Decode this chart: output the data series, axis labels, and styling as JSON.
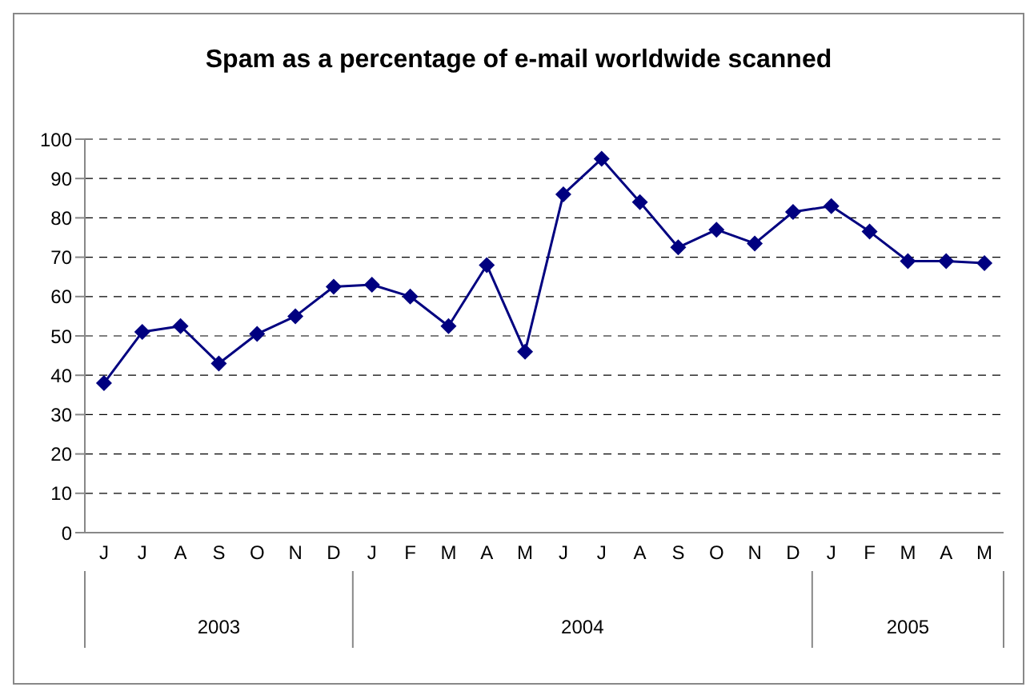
{
  "chart_data": {
    "type": "line",
    "title": "Spam as a percentage of e-mail worldwide scanned",
    "categories": [
      "J",
      "J",
      "A",
      "S",
      "O",
      "N",
      "D",
      "J",
      "F",
      "M",
      "A",
      "M",
      "J",
      "J",
      "A",
      "S",
      "O",
      "N",
      "D",
      "J",
      "F",
      "M",
      "A",
      "M"
    ],
    "series": [
      {
        "color": "#000080",
        "values": [
          38,
          51,
          52.5,
          43,
          50.5,
          55,
          62.5,
          63,
          60,
          52.5,
          68,
          46,
          86,
          95,
          84,
          72.5,
          77,
          73.5,
          81.5,
          83,
          76.5,
          69,
          69,
          68.5
        ]
      }
    ],
    "annotations": [
      "2003",
      "2004",
      "2005"
    ],
    "ylim": [
      0,
      100
    ],
    "yticks": [
      0,
      10,
      20,
      30,
      40,
      50,
      60,
      70,
      80,
      90,
      100
    ],
    "grid": "y",
    "marker": "diamond",
    "line_style": "solid"
  }
}
